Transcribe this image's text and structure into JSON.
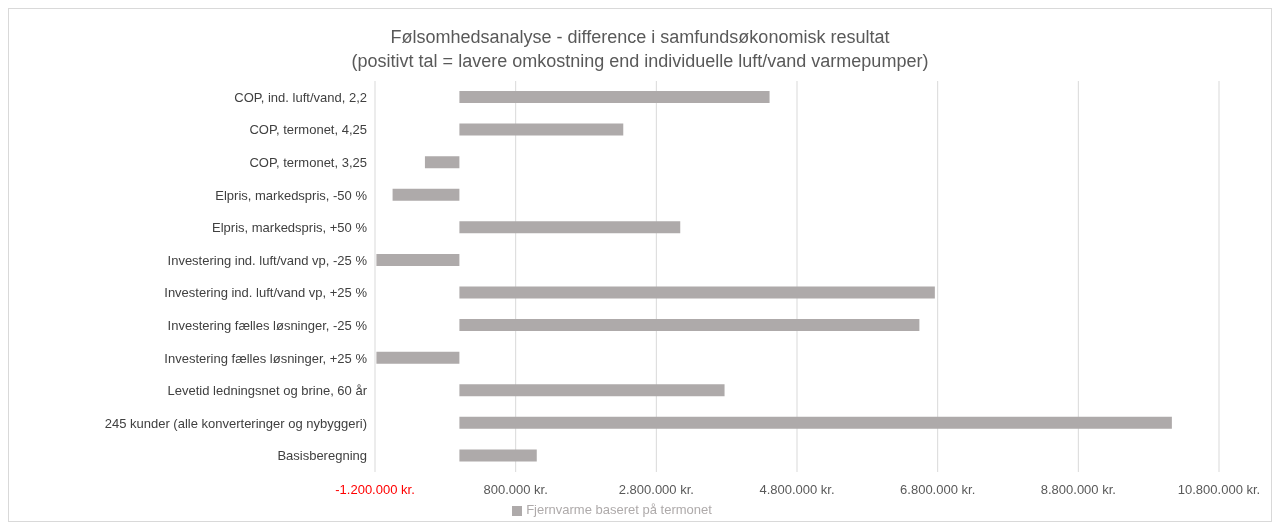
{
  "chart_data": {
    "type": "bar",
    "orientation": "horizontal",
    "title": "Følsomhedsanalyse - difference i samfundsøkonomisk resultat",
    "subtitle": "(positivt tal = lavere omkostning end individuelle luft/vand varmepumper)",
    "categories": [
      "COP, ind. luft/vand, 2,2",
      "COP, termonet, 4,25",
      "COP, termonet, 3,25",
      "Elpris, markedspris, -50 %",
      "Elpris, markedspris, +50 %",
      "Investering ind. luft/vand vp, -25 %",
      "Investering ind. luft/vand vp, +25 %",
      "Investering fælles løsninger, -25 %",
      "Investering fælles løsninger, +25 %",
      "Levetid ledningsnet og brine, 60 år",
      "245 kunder (alle konverteringer og nybyggeri)",
      "Basisberegning"
    ],
    "series": [
      {
        "name": "Fjernvarme baseret på termonet",
        "color": "#aeaaaa",
        "values": [
          4410000,
          2330000,
          -490000,
          -950000,
          3140000,
          -1180000,
          6760000,
          6540000,
          -1180000,
          3770000,
          10130000,
          1100000
        ]
      }
    ],
    "xlim": [
      -1200000,
      10800000
    ],
    "xticks": [
      {
        "value": -1200000,
        "label": "-1.200.000 kr."
      },
      {
        "value": 800000,
        "label": "800.000 kr."
      },
      {
        "value": 2800000,
        "label": "2.800.000 kr."
      },
      {
        "value": 4800000,
        "label": "4.800.000 kr."
      },
      {
        "value": 6800000,
        "label": "6.800.000 kr."
      },
      {
        "value": 8800000,
        "label": "8.800.000 kr."
      },
      {
        "value": 10800000,
        "label": "10.800.000 kr."
      }
    ],
    "grid": "x",
    "legend": "bottom"
  }
}
